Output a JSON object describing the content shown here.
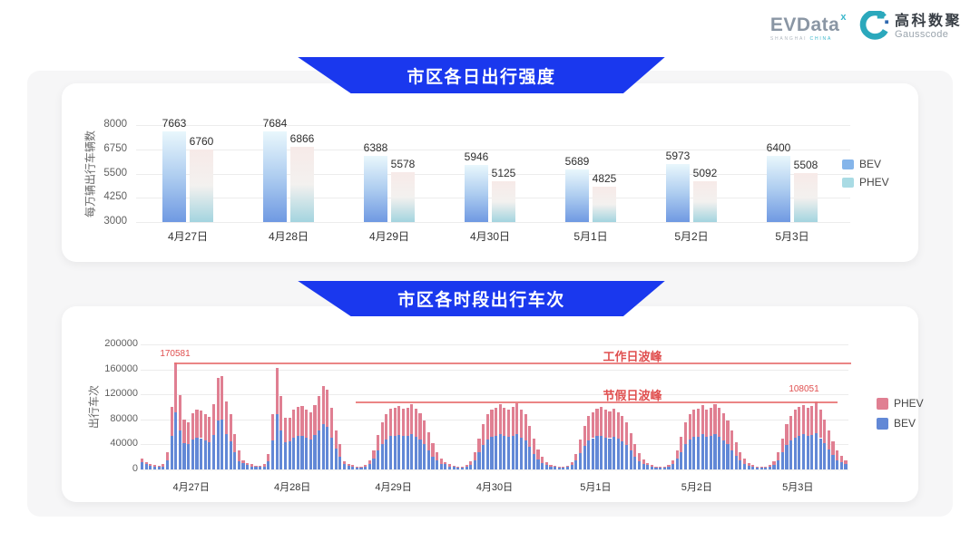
{
  "colors": {
    "banner_blue": "#1a38ee",
    "annotation_red": "#e04f4f",
    "line_red": "#e87070",
    "page_bg": "#ffffff",
    "panel_bg": "#f6f6f7"
  },
  "header": {
    "evdata": {
      "wordmark": "EVData",
      "superscript": "x",
      "tagline_left": "SHANGHAI",
      "tagline_right": "CHINA"
    },
    "gausscode": {
      "cn": "高科数聚",
      "en": "Gausscode"
    }
  },
  "charts": [
    {
      "banner": "市区各日出行强度",
      "chart_data": {
        "type": "bar",
        "title": "市区各日出行强度",
        "xlabel": "",
        "ylabel": "每万辆出行车辆数",
        "ylim": [
          3000,
          8000
        ],
        "yticks": [
          3000,
          4250,
          5500,
          6750,
          8000
        ],
        "grid": true,
        "legend_position": "right",
        "categories": [
          "4月27日",
          "4月28日",
          "4月29日",
          "4月30日",
          "5月1日",
          "5月2日",
          "5月3日"
        ],
        "series": [
          {
            "name": "BEV",
            "values": [
              7663,
              7684,
              6388,
              5946,
              5689,
              5973,
              6400
            ]
          },
          {
            "name": "PHEV",
            "values": [
              6760,
              6866,
              5578,
              5125,
              4825,
              5092,
              5508
            ]
          }
        ],
        "legend_colors": {
          "BEV": "#85b5ea",
          "PHEV": "#a9dbe4"
        },
        "bar_gradients": {
          "BEV": [
            "#e9f7fc",
            "#aecdf0",
            "#6f99e2"
          ],
          "PHEV": [
            "#f7eae8",
            "#f3f1ef",
            "#a3d4df"
          ]
        }
      }
    },
    {
      "banner": "市区各时段出行车次",
      "chart_data": {
        "type": "stacked-bar",
        "title": "市区各时段出行车次",
        "xlabel": "",
        "ylabel": "出行车次",
        "ylim": [
          0,
          200000
        ],
        "yticks": [
          0,
          40000,
          80000,
          120000,
          160000,
          200000
        ],
        "grid": true,
        "hours_per_day": 24,
        "legend_position": "right",
        "legend_order": [
          "PHEV",
          "BEV"
        ],
        "legend_colors": {
          "PHEV": "#e07f92",
          "BEV": "#6288d6"
        },
        "categories": [
          "4月27日",
          "4月28日",
          "4月29日",
          "4月30日",
          "5月1日",
          "5月2日",
          "5月3日"
        ],
        "series": [
          {
            "name": "BEV",
            "color": "#6288d6",
            "values_by_day": [
              [
                11000,
                8000,
                6000,
                5000,
                4000,
                5000,
                15000,
                54000,
                91000,
                62000,
                42000,
                40000,
                48000,
                51000,
                50000,
                47000,
                44000,
                55000,
                78000,
                80000,
                57000,
                45000,
                28000,
                13000
              ],
              [
                10000,
                7000,
                5000,
                4000,
                4000,
                5000,
                13000,
                47000,
                88000,
                62000,
                44000,
                45000,
                51000,
                54000,
                54000,
                51000,
                48000,
                55000,
                63000,
                72000,
                68000,
                51000,
                33000,
                20000
              ],
              [
                8000,
                6000,
                4000,
                3000,
                3000,
                4000,
                8000,
                17000,
                30000,
                41000,
                48000,
                53000,
                54000,
                55000,
                53000,
                54000,
                57000,
                52000,
                48000,
                41000,
                31000,
                21000,
                14000,
                9000
              ],
              [
                8000,
                5000,
                4000,
                3000,
                3000,
                4000,
                7000,
                15000,
                27000,
                39000,
                48000,
                52000,
                54000,
                57000,
                53000,
                52000,
                54000,
                57000,
                51000,
                46000,
                36000,
                25000,
                16000,
                10000
              ],
              [
                7000,
                5000,
                4000,
                3000,
                3000,
                4000,
                7000,
                14000,
                26000,
                38000,
                46000,
                50000,
                53000,
                54000,
                51000,
                50000,
                52000,
                49000,
                45000,
                39000,
                30000,
                20000,
                13000,
                8000
              ],
              [
                7000,
                4000,
                3000,
                3000,
                3000,
                4000,
                8000,
                17000,
                28000,
                41000,
                48000,
                52000,
                52000,
                56000,
                52000,
                53000,
                57000,
                52000,
                47000,
                40000,
                31000,
                22000,
                14000,
                9000
              ],
              [
                6000,
                4000,
                3000,
                3000,
                3000,
                4000,
                7000,
                15000,
                27000,
                39000,
                46000,
                51000,
                54000,
                56000,
                53000,
                55000,
                58000,
                50000,
                42000,
                32000,
                23000,
                15000,
                11000,
                8000
              ]
            ]
          },
          {
            "name": "PHEV",
            "color": "#e07f92",
            "values_by_day": [
              [
                6000,
                4000,
                3000,
                2000,
                2000,
                3000,
                12000,
                46000,
                79581,
                57000,
                38000,
                36000,
                42000,
                44000,
                44000,
                41000,
                40000,
                49000,
                68000,
                69000,
                51000,
                43000,
                29000,
                17000
              ],
              [
                5000,
                3000,
                3000,
                2000,
                2000,
                3000,
                11000,
                41000,
                75000,
                55000,
                38000,
                38000,
                44000,
                46000,
                47000,
                45000,
                43000,
                48000,
                55000,
                62000,
                60000,
                47000,
                30000,
                20000
              ],
              [
                5000,
                3000,
                3000,
                2000,
                2000,
                3000,
                6000,
                13000,
                25000,
                34000,
                40000,
                44000,
                45000,
                46000,
                44000,
                45000,
                48000,
                45000,
                42000,
                37000,
                29000,
                21000,
                14000,
                9000
              ],
              [
                4000,
                3000,
                2000,
                2000,
                2000,
                3000,
                6000,
                13000,
                23000,
                33000,
                40000,
                43000,
                45000,
                47000,
                45000,
                44000,
                46000,
                49000,
                45000,
                42000,
                34000,
                25000,
                16000,
                10000
              ],
              [
                4000,
                2000,
                2000,
                2000,
                2000,
                2000,
                5000,
                11000,
                22000,
                32000,
                39000,
                42000,
                44000,
                46000,
                44000,
                43000,
                45000,
                43000,
                40000,
                36000,
                28000,
                20000,
                13000,
                8000
              ],
              [
                3000,
                3000,
                2000,
                2000,
                2000,
                3000,
                6000,
                13000,
                24000,
                34000,
                40000,
                43000,
                45000,
                47000,
                44000,
                46000,
                48000,
                46000,
                43000,
                38000,
                31000,
                22000,
                14000,
                8000
              ],
              [
                4000,
                3000,
                2000,
                2000,
                2000,
                3000,
                6000,
                13000,
                23000,
                33000,
                40000,
                44000,
                46000,
                47000,
                46000,
                47000,
                50051,
                45000,
                38000,
                30000,
                22000,
                15000,
                11000,
                7000
              ]
            ]
          }
        ],
        "annotations": {
          "workday_peak": {
            "label": "工作日波峰",
            "value": 170581,
            "value_label": "170581"
          },
          "holiday_peak": {
            "label": "节假日波峰",
            "value": 108051,
            "value_label": "108051"
          }
        }
      }
    }
  ]
}
